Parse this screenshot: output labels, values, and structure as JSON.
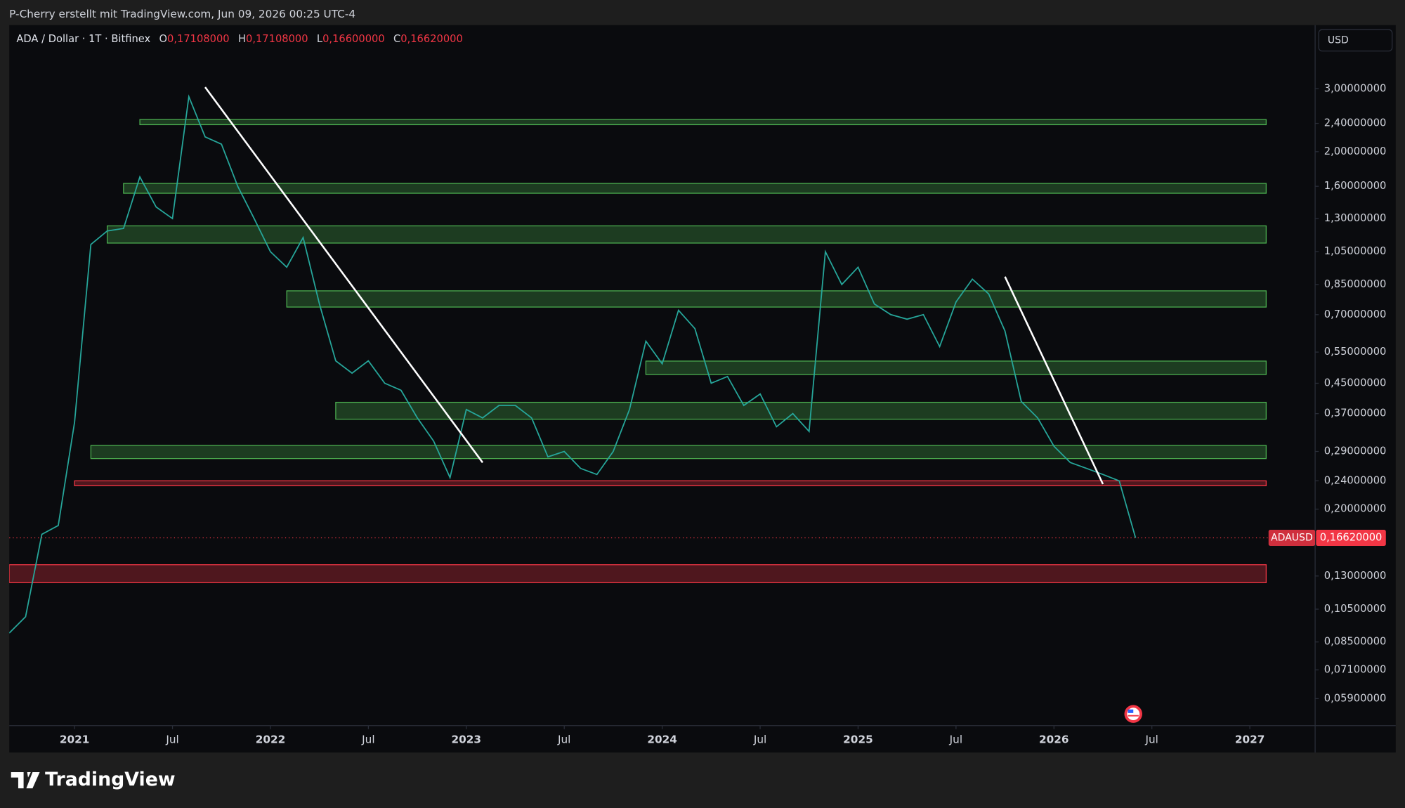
{
  "header": {
    "credit": "P-Cherry erstellt mit TradingView.com, Jun 09, 2026 00:25 UTC-4"
  },
  "chart_data": {
    "type": "line",
    "symbol": "ADA / Dollar · 1T · Bitfinex",
    "ohlc": [
      {
        "key": "O",
        "value": "0,17108000"
      },
      {
        "key": "H",
        "value": "0,17108000"
      },
      {
        "key": "L",
        "value": "0,16600000"
      },
      {
        "key": "C",
        "value": "0,16620000"
      }
    ],
    "currency": "USD",
    "log_scale": true,
    "grid": false,
    "x": [
      "2020-09",
      "2020-10",
      "2020-11",
      "2020-12",
      "2021-01",
      "2021-02",
      "2021-03",
      "2021-04",
      "2021-05",
      "2021-06",
      "2021-07",
      "2021-08",
      "2021-09",
      "2021-10",
      "2021-11",
      "2021-12",
      "2022-01",
      "2022-02",
      "2022-03",
      "2022-04",
      "2022-05",
      "2022-06",
      "2022-07",
      "2022-08",
      "2022-09",
      "2022-10",
      "2022-11",
      "2022-12",
      "2023-01",
      "2023-02",
      "2023-03",
      "2023-04",
      "2023-05",
      "2023-06",
      "2023-07",
      "2023-08",
      "2023-09",
      "2023-10",
      "2023-11",
      "2023-12",
      "2024-01",
      "2024-02",
      "2024-03",
      "2024-04",
      "2024-05",
      "2024-06",
      "2024-07",
      "2024-08",
      "2024-09",
      "2024-10",
      "2024-11",
      "2024-12",
      "2025-01",
      "2025-02",
      "2025-03",
      "2025-04",
      "2025-05",
      "2025-06",
      "2025-07",
      "2025-08",
      "2025-09",
      "2025-10",
      "2025-11",
      "2025-12",
      "2026-01",
      "2026-02",
      "2026-03",
      "2026-04",
      "2026-05",
      "2026-06"
    ],
    "series": [
      {
        "name": "ADAUSD",
        "color": "#26a69a",
        "values": [
          0.09,
          0.1,
          0.17,
          0.18,
          0.35,
          1.1,
          1.2,
          1.22,
          1.7,
          1.4,
          1.3,
          2.85,
          2.2,
          2.1,
          1.6,
          1.3,
          1.05,
          0.95,
          1.15,
          0.75,
          0.52,
          0.48,
          0.52,
          0.45,
          0.43,
          0.36,
          0.31,
          0.245,
          0.38,
          0.36,
          0.39,
          0.39,
          0.36,
          0.28,
          0.29,
          0.26,
          0.25,
          0.29,
          0.38,
          0.59,
          0.51,
          0.72,
          0.64,
          0.45,
          0.47,
          0.39,
          0.42,
          0.34,
          0.37,
          0.33,
          1.05,
          0.85,
          0.95,
          0.75,
          0.7,
          0.68,
          0.7,
          0.57,
          0.76,
          0.88,
          0.8,
          0.63,
          0.4,
          0.36,
          0.3,
          0.27,
          0.26,
          0.25,
          0.24,
          0.1662
        ]
      }
    ],
    "last_price": {
      "label": "ADAUSD",
      "value": 0.1662,
      "value_label": "0,16620000",
      "color": "#f23645"
    },
    "zones": [
      {
        "start": "2021-05",
        "end": "2027-02",
        "low": 2.38,
        "high": 2.46,
        "color": "#4caf50"
      },
      {
        "start": "2021-04",
        "end": "2027-02",
        "low": 1.53,
        "high": 1.63,
        "color": "#4caf50"
      },
      {
        "start": "2021-03",
        "end": "2027-02",
        "low": 1.11,
        "high": 1.24,
        "color": "#4caf50"
      },
      {
        "start": "2022-02",
        "end": "2027-02",
        "low": 0.735,
        "high": 0.816,
        "color": "#4caf50"
      },
      {
        "start": "2023-12",
        "end": "2027-02",
        "low": 0.476,
        "high": 0.519,
        "color": "#4caf50"
      },
      {
        "start": "2022-05",
        "end": "2027-02",
        "low": 0.357,
        "high": 0.398,
        "color": "#4caf50"
      },
      {
        "start": "2021-02",
        "end": "2027-02",
        "low": 0.277,
        "high": 0.3015,
        "color": "#4caf50"
      },
      {
        "start": "2021-01",
        "end": "2027-02",
        "low": 0.2325,
        "high": 0.24,
        "color": "#f23645"
      },
      {
        "start": "2020-09",
        "end": "2027-02",
        "low": 0.1245,
        "high": 0.1398,
        "color": "#f23645"
      }
    ],
    "trendlines": [
      {
        "x": [
          "2021-09",
          "2023-02"
        ],
        "y": [
          3.03,
          0.27
        ],
        "color": "#ffffff"
      },
      {
        "x": [
          "2025-10",
          "2026-04"
        ],
        "y": [
          0.894,
          0.235
        ],
        "color": "#ffffff"
      }
    ],
    "xlim": [
      "2020-09",
      "2027-05"
    ],
    "xticks": [
      {
        "value": "2021-01",
        "label": "2021"
      },
      {
        "value": "2021-07",
        "label": "Jul"
      },
      {
        "value": "2022-01",
        "label": "2022"
      },
      {
        "value": "2022-07",
        "label": "Jul"
      },
      {
        "value": "2023-01",
        "label": "2023"
      },
      {
        "value": "2023-07",
        "label": "Jul"
      },
      {
        "value": "2024-01",
        "label": "2024"
      },
      {
        "value": "2024-07",
        "label": "Jul"
      },
      {
        "value": "2025-01",
        "label": "2025"
      },
      {
        "value": "2025-07",
        "label": "Jul"
      },
      {
        "value": "2026-01",
        "label": "2026"
      },
      {
        "value": "2026-07",
        "label": "Jul"
      },
      {
        "value": "2027-01",
        "label": "2027"
      }
    ],
    "ylim": [
      0.0496,
      4.52
    ],
    "yticks": [
      {
        "value": 3,
        "label": "3,00000000"
      },
      {
        "value": 2.4,
        "label": "2,40000000"
      },
      {
        "value": 2,
        "label": "2,00000000"
      },
      {
        "value": 1.6,
        "label": "1,60000000"
      },
      {
        "value": 1.3,
        "label": "1,30000000"
      },
      {
        "value": 1.05,
        "label": "1,05000000"
      },
      {
        "value": 0.85,
        "label": "0,85000000"
      },
      {
        "value": 0.7,
        "label": "0,70000000"
      },
      {
        "value": 0.55,
        "label": "0,55000000"
      },
      {
        "value": 0.45,
        "label": "0,45000000"
      },
      {
        "value": 0.37,
        "label": "0,37000000"
      },
      {
        "value": 0.29,
        "label": "0,29000000"
      },
      {
        "value": 0.24,
        "label": "0,24000000"
      },
      {
        "value": 0.2,
        "label": "0,20000000"
      },
      {
        "value": 0.13,
        "label": "0,13000000"
      },
      {
        "value": 0.105,
        "label": "0,10500000"
      },
      {
        "value": 0.085,
        "label": "0,08500000"
      },
      {
        "value": 0.071,
        "label": "0,07100000"
      },
      {
        "value": 0.059,
        "label": "0,05900000"
      }
    ]
  },
  "footer": {
    "brand": "TradingView"
  }
}
